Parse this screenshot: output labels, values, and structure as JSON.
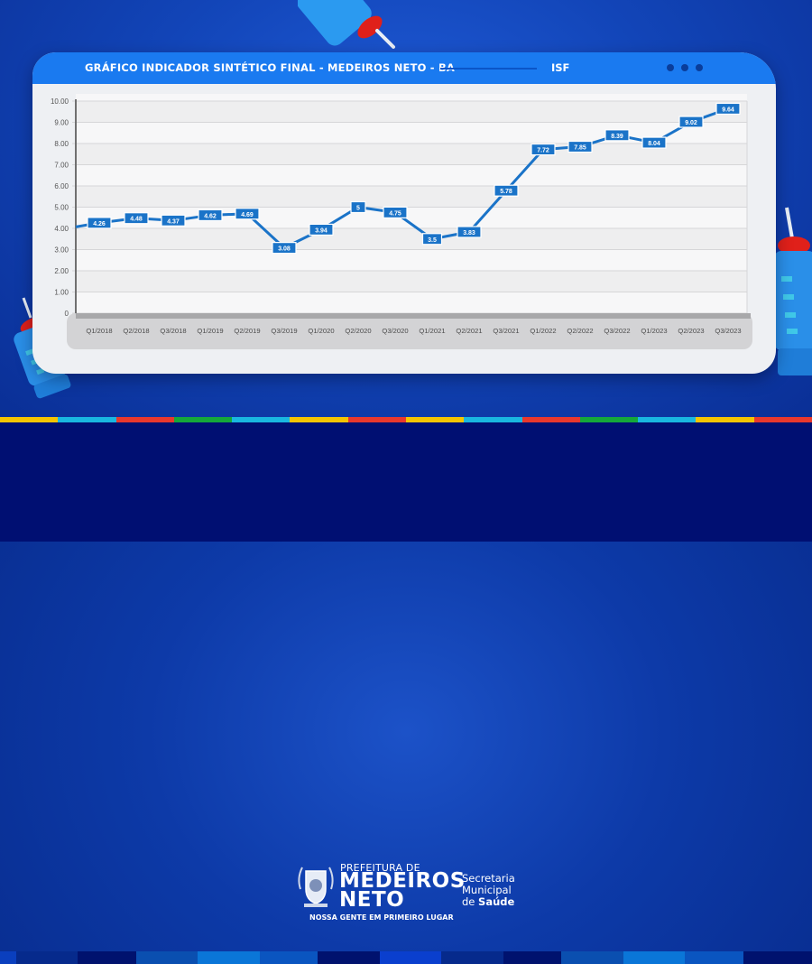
{
  "window": {
    "title": "GRÁFICO INDICADOR SINTÉTICO FINAL - MEDEIROS NETO - BA",
    "tab_label": "ISF",
    "menu_icon": "three-dots-icon"
  },
  "chart_data": {
    "type": "line",
    "title": "GRÁFICO INDICADOR SINTÉTICO FINAL - MEDEIROS NETO - BA",
    "subtitle": "ISF",
    "xlabel": "",
    "ylabel": "",
    "ylim": [
      0,
      10
    ],
    "yticks": [
      "0",
      "1.00",
      "2.00",
      "3.00",
      "4.00",
      "5.00",
      "6.00",
      "7.00",
      "8.00",
      "9.00",
      "10.00"
    ],
    "grid": true,
    "legend": "none",
    "categories": [
      "Q1/2018",
      "Q2/2018",
      "Q3/2018",
      "Q1/2019",
      "Q2/2019",
      "Q3/2019",
      "Q1/2020",
      "Q2/2020",
      "Q3/2020",
      "Q1/2021",
      "Q2/2021",
      "Q3/2021",
      "Q1/2022",
      "Q2/2022",
      "Q3/2022",
      "Q1/2023",
      "Q2/2023",
      "Q3/2023"
    ],
    "series": [
      {
        "name": "ISF",
        "color": "#1a73c8",
        "values": [
          4.26,
          4.48,
          4.37,
          4.62,
          4.69,
          3.08,
          3.94,
          5,
          4.75,
          3.5,
          3.83,
          5.78,
          7.72,
          7.85,
          8.39,
          8.04,
          9.02,
          9.64
        ],
        "labels": [
          "4.26",
          "4.48",
          "4.37",
          "4.62",
          "4.69",
          "3.08",
          "3.94",
          "5",
          "4.75",
          "3.5",
          "3.83",
          "5.78",
          "7.72",
          "7.85",
          "8.39",
          "8.04",
          "9.02",
          "9.64"
        ]
      }
    ]
  },
  "footer": {
    "prefeitura": "PREFEITURA DE",
    "city_line1": "MEDEIROS",
    "city_line2": "NETO",
    "slogan": "NOSSA GENTE EM PRIMEIRO LUGAR",
    "secretaria_line1": "Secretaria",
    "secretaria_line2": "Municipal",
    "secretaria_line3_prefix": "de ",
    "secretaria_line3_bold": "Saúde"
  },
  "colors": {
    "accent": "#1a7af0",
    "line": "#1a73c8",
    "footer_bg": "#000f72",
    "stripe": [
      "#f5c400",
      "#19b7e0",
      "#e8382d",
      "#15a83a"
    ]
  }
}
